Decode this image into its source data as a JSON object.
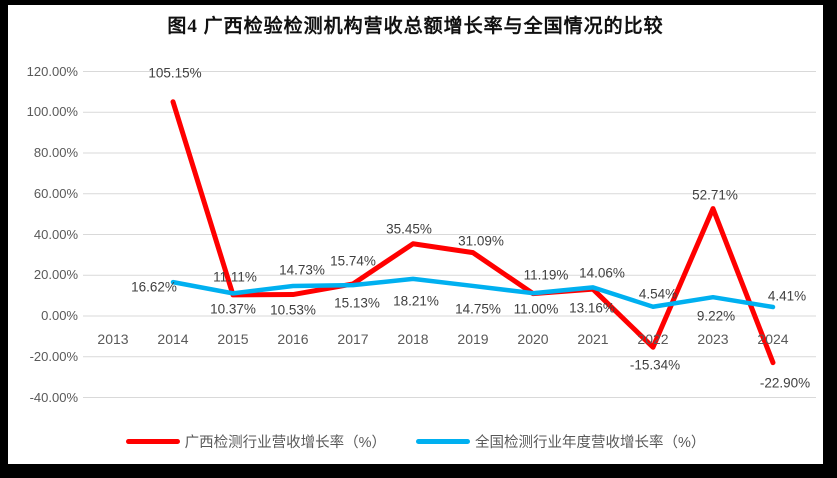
{
  "chart_data": {
    "type": "line",
    "title": "图4 广西检验检测机构营收总额增长率与全国情况的比较",
    "categories": [
      "2013",
      "2014",
      "2015",
      "2016",
      "2017",
      "2018",
      "2019",
      "2020",
      "2021",
      "2022",
      "2023",
      "2024"
    ],
    "series": [
      {
        "id": "guangxi",
        "name": "广西检测行业营收增长率（%）",
        "color": "#FF0000",
        "width": 5,
        "values": [
          null,
          105.15,
          10.37,
          10.53,
          15.74,
          35.45,
          31.09,
          11.0,
          13.16,
          -15.34,
          52.71,
          -22.9
        ],
        "labels": [
          null,
          "105.15%",
          "10.37%",
          "10.53%",
          "15.74%",
          "35.45%",
          "31.09%",
          "11.00%",
          "13.16%",
          "-15.34%",
          "52.71%",
          "-22.90%"
        ],
        "label_offsets": [
          null,
          [
            2,
            -29
          ],
          [
            0,
            14
          ],
          [
            0,
            15
          ],
          [
            0,
            -23
          ],
          [
            -4,
            -15
          ],
          [
            8,
            -12
          ],
          [
            3,
            15
          ],
          [
            -1,
            19
          ],
          [
            2,
            18
          ],
          [
            2,
            -14
          ],
          [
            12,
            20
          ]
        ]
      },
      {
        "id": "national",
        "name": "全国检测行业年度营收增长率（%）",
        "color": "#00B0F0",
        "width": 4.5,
        "values": [
          null,
          16.62,
          11.11,
          14.73,
          15.13,
          18.21,
          14.75,
          11.19,
          14.06,
          4.54,
          9.22,
          4.41
        ],
        "labels": [
          null,
          "16.62%",
          "11.11%",
          "14.73%",
          "15.13%",
          "18.21%",
          "14.75%",
          "11.19%",
          "14.06%",
          "4.54%",
          "9.22%",
          "4.41%"
        ],
        "label_offsets": [
          null,
          [
            -19,
            5
          ],
          [
            2,
            -16
          ],
          [
            9,
            -16
          ],
          [
            4,
            18
          ],
          [
            3,
            22
          ],
          [
            5,
            23
          ],
          [
            13,
            -18
          ],
          [
            9,
            -14
          ],
          [
            5,
            -13
          ],
          [
            3,
            19
          ],
          [
            14,
            -11
          ]
        ]
      }
    ],
    "y_ticks": [
      {
        "value": 120,
        "label": "120.00%"
      },
      {
        "value": 100,
        "label": "100.00%"
      },
      {
        "value": 80,
        "label": "80.00%"
      },
      {
        "value": 60,
        "label": "60.00%"
      },
      {
        "value": 40,
        "label": "40.00%"
      },
      {
        "value": 20,
        "label": "20.00%"
      },
      {
        "value": 0,
        "label": "0.00%"
      },
      {
        "value": -20,
        "label": "-20.00%"
      },
      {
        "value": -40,
        "label": "-40.00%"
      }
    ],
    "ylim": [
      -40,
      120
    ],
    "grid": true,
    "gridline_color": "#D9D9D9",
    "legend_position": "bottom"
  }
}
